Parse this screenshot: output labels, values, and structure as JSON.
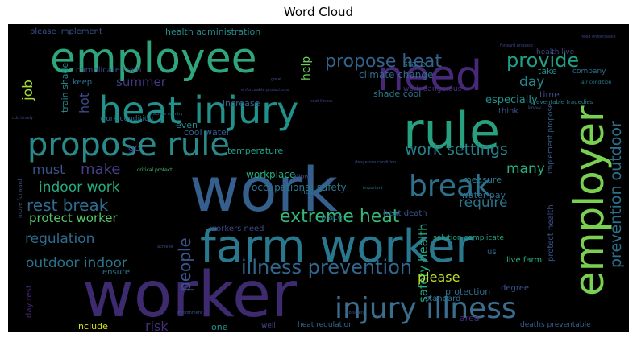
{
  "title": "Word Cloud",
  "chart_data": {
    "type": "wordcloud",
    "title": "Word Cloud",
    "background": "#000000",
    "words": [
      {
        "text": "worker",
        "color": "#3e2a6e"
      },
      {
        "text": "work",
        "color": "#355f8d"
      },
      {
        "text": "farm worker",
        "color": "#2a788e"
      },
      {
        "text": "employee",
        "color": "#2ea57e"
      },
      {
        "text": "heat injury",
        "color": "#22918c"
      },
      {
        "text": "rule",
        "color": "#26a07f"
      },
      {
        "text": "employer",
        "color": "#7ad151"
      },
      {
        "text": "need",
        "color": "#482878"
      },
      {
        "text": "propose rule",
        "color": "#2a8a8b"
      },
      {
        "text": "injury illness",
        "color": "#3b6e8e"
      },
      {
        "text": "break",
        "color": "#2c728e"
      },
      {
        "text": "illness prevention",
        "color": "#31668e"
      },
      {
        "text": "extreme heat",
        "color": "#35b779"
      },
      {
        "text": "provide",
        "color": "#1fa187"
      },
      {
        "text": "propose heat",
        "color": "#33638d"
      },
      {
        "text": "work settings",
        "color": "#26828e"
      },
      {
        "text": "prevention outdoor",
        "color": "#2d708e"
      },
      {
        "text": "people",
        "color": "#3a548c"
      },
      {
        "text": "rest break",
        "color": "#2f6b8e"
      },
      {
        "text": "indoor work",
        "color": "#25ab82"
      },
      {
        "text": "outdoor indoor",
        "color": "#2b748e"
      },
      {
        "text": "regulation",
        "color": "#2f6c8e"
      },
      {
        "text": "require",
        "color": "#2c738e"
      },
      {
        "text": "safety health",
        "color": "#22a884"
      },
      {
        "text": "please",
        "color": "#bddf26"
      },
      {
        "text": "make",
        "color": "#433e85"
      },
      {
        "text": "must",
        "color": "#3b528b"
      },
      {
        "text": "protect worker",
        "color": "#52c569"
      },
      {
        "text": "many",
        "color": "#27ad81"
      },
      {
        "text": "day",
        "color": "#24878e"
      },
      {
        "text": "summer",
        "color": "#453781"
      },
      {
        "text": "job",
        "color": "#a5db36"
      },
      {
        "text": "hot",
        "color": "#3e4a89"
      },
      {
        "text": "help",
        "color": "#6ccd5a"
      },
      {
        "text": "risk",
        "color": "#462f7c"
      },
      {
        "text": "especially",
        "color": "#20928c"
      },
      {
        "text": "occupational safety",
        "color": "#2a768e"
      },
      {
        "text": "climate change",
        "color": "#2f6b8e"
      },
      {
        "text": "health administration",
        "color": "#238a8d"
      },
      {
        "text": "please implement",
        "color": "#3b528b"
      },
      {
        "text": "complicate train",
        "color": "#3f4788"
      },
      {
        "text": "train shade",
        "color": "#23898e"
      },
      {
        "text": "shade cool",
        "color": "#2a778e"
      },
      {
        "text": "state",
        "color": "#2c718e"
      },
      {
        "text": "time",
        "color": "#3e4989"
      },
      {
        "text": "take",
        "color": "#25858e"
      },
      {
        "text": "health live",
        "color": "#414487"
      },
      {
        "text": "keep",
        "color": "#2e6f8e"
      },
      {
        "text": "increase",
        "color": "#355e8d"
      },
      {
        "text": "think",
        "color": "#3d4e8a"
      },
      {
        "text": "company",
        "color": "#2d708e"
      },
      {
        "text": "work dangerous",
        "color": "#46337e"
      },
      {
        "text": "work condition",
        "color": "#2c728e"
      },
      {
        "text": "cool water",
        "color": "#355e8d"
      },
      {
        "text": "temperature",
        "color": "#1fa088"
      },
      {
        "text": "workplace",
        "color": "#25ab82"
      },
      {
        "text": "measure",
        "color": "#2a788e"
      },
      {
        "text": "water pay",
        "color": "#2d708e"
      },
      {
        "text": "heat death",
        "color": "#39558c"
      },
      {
        "text": "workers need",
        "color": "#3f4788"
      },
      {
        "text": "even",
        "color": "#24878e"
      },
      {
        "text": "go",
        "color": "#3e4c8a"
      },
      {
        "text": "place",
        "color": "#2f6c8e"
      },
      {
        "text": "solution complicate",
        "color": "#20a386"
      },
      {
        "text": "protect health",
        "color": "#3b528b"
      },
      {
        "text": "implement propose",
        "color": "#355f8d"
      },
      {
        "text": "live farm",
        "color": "#29af7f"
      },
      {
        "text": "standard",
        "color": "#2c728e"
      },
      {
        "text": "degree",
        "color": "#3a548c"
      },
      {
        "text": "protection",
        "color": "#2f6c8e"
      },
      {
        "text": "ensure",
        "color": "#2c738e"
      },
      {
        "text": "include",
        "color": "#d8e219"
      },
      {
        "text": "one",
        "color": "#20928c"
      },
      {
        "text": "well",
        "color": "#404588"
      },
      {
        "text": "heat regulation",
        "color": "#31688e"
      },
      {
        "text": "area",
        "color": "#472c7a"
      },
      {
        "text": "deaths preventable",
        "color": "#355e8d"
      },
      {
        "text": "day rest",
        "color": "#482475"
      },
      {
        "text": "new",
        "color": "#2e6e8e"
      },
      {
        "text": "allow",
        "color": "#3e4989"
      },
      {
        "text": "us",
        "color": "#31688e"
      },
      {
        "text": "move forward",
        "color": "#3c508b"
      },
      {
        "text": "preventable tragedies",
        "color": "#26828e"
      },
      {
        "text": "know",
        "color": "#3b528b"
      },
      {
        "text": "air condition",
        "color": "#2a788e"
      },
      {
        "text": "need enforceable",
        "color": "#3f4788"
      },
      {
        "text": "heat illness",
        "color": "#3e4989"
      },
      {
        "text": "critical protect",
        "color": "#44bf70"
      },
      {
        "text": "dangerous condition",
        "color": "#3b528b"
      },
      {
        "text": "forward propose",
        "color": "#414487"
      },
      {
        "text": "environment",
        "color": "#3b528b"
      },
      {
        "text": "important",
        "color": "#2c728e"
      },
      {
        "text": "across country",
        "color": "#2a788e"
      },
      {
        "text": "cdc timely",
        "color": "#3e4a89"
      },
      {
        "text": "great",
        "color": "#3b528b"
      },
      {
        "text": "achieve",
        "color": "#3e4c8a"
      },
      {
        "text": "enforceable protections",
        "color": "#3e4989"
      },
      {
        "text": "job safety",
        "color": "#3b528b"
      }
    ]
  }
}
